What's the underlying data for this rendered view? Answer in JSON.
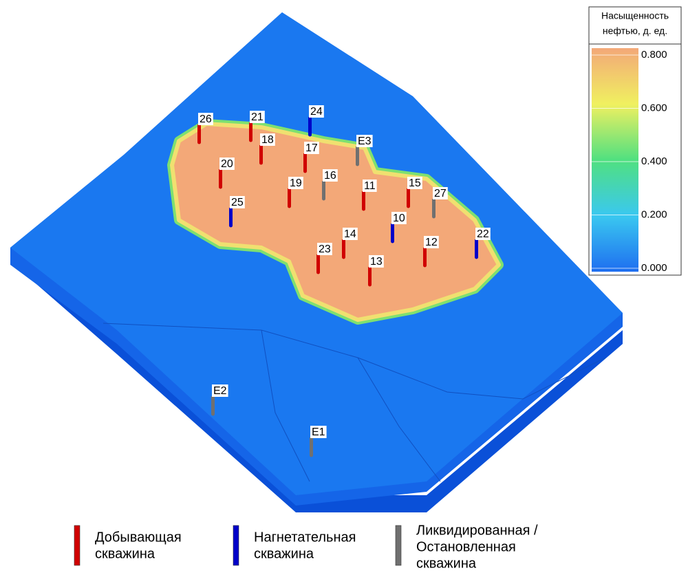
{
  "colorbar": {
    "title": [
      "Насыщенность",
      "нефтью, д. ед."
    ],
    "lim": [
      0,
      0.8
    ],
    "ticks": [
      {
        "value": 0.8,
        "label": "0.800"
      },
      {
        "value": 0.6,
        "label": "0.600"
      },
      {
        "value": 0.4,
        "label": "0.400"
      },
      {
        "value": 0.2,
        "label": "0.200"
      },
      {
        "value": 0,
        "label": "0.000"
      }
    ]
  },
  "legend": [
    {
      "lines": [
        "Добывающая",
        "скважина"
      ],
      "color": "#d00000"
    },
    {
      "lines": [
        "Нагнетательная",
        "скважина"
      ],
      "color": "#0000c8"
    },
    {
      "lines": [
        "Ликвидированная /",
        "Остановленная",
        "скважина"
      ],
      "color": "#707070"
    }
  ],
  "wells": [
    {
      "label": "26",
      "kind": 0
    },
    {
      "label": "21",
      "kind": 0
    },
    {
      "label": "24",
      "kind": 1
    },
    {
      "label": "18",
      "kind": 0
    },
    {
      "label": "17",
      "kind": 0
    },
    {
      "label": "E3",
      "kind": 2
    },
    {
      "label": "20",
      "kind": 0
    },
    {
      "label": "16",
      "kind": 2
    },
    {
      "label": "19",
      "kind": 0
    },
    {
      "label": "11",
      "kind": 0
    },
    {
      "label": "15",
      "kind": 0
    },
    {
      "label": "27",
      "kind": 2
    },
    {
      "label": "25",
      "kind": 1
    },
    {
      "label": "10",
      "kind": 1
    },
    {
      "label": "14",
      "kind": 0
    },
    {
      "label": "22",
      "kind": 1
    },
    {
      "label": "12",
      "kind": 0
    },
    {
      "label": "23",
      "kind": 0
    },
    {
      "label": "13",
      "kind": 0
    },
    {
      "label": "E2",
      "kind": 2
    },
    {
      "label": "E1",
      "kind": 2
    }
  ]
}
